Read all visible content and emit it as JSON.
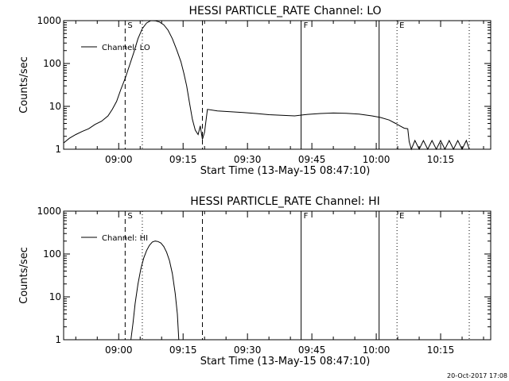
{
  "footer": {
    "timestamp": "20-Oct-2017 17:08"
  },
  "chart_data": [
    {
      "type": "line",
      "title": "HESSI PARTICLE_RATE Channel: LO",
      "xlabel": "Start Time (13-May-15 08:47:10)",
      "ylabel": "Counts/sec",
      "yscale": "log",
      "ylim": [
        1,
        1000
      ],
      "y_ticks": [
        1,
        10,
        100,
        1000
      ],
      "y_tick_labels": [
        "1",
        "10",
        "100",
        "1000"
      ],
      "x_time_range": [
        "08:47:10",
        "10:26:40"
      ],
      "x_ticks": [
        "09:00",
        "09:15",
        "09:30",
        "09:45",
        "10:00",
        "10:15"
      ],
      "legend": {
        "label": "Channel: LO",
        "position": "top-left"
      },
      "markers": [
        {
          "time": "09:01:30",
          "style": "dashed",
          "label": "S"
        },
        {
          "time": "09:05:30",
          "style": "dotted",
          "label": ""
        },
        {
          "time": "09:19:30",
          "style": "dashed",
          "label": ""
        },
        {
          "time": "09:42:30",
          "style": "solid",
          "label": "F"
        },
        {
          "time": "10:00:40",
          "style": "solid",
          "label": ""
        },
        {
          "time": "10:04:50",
          "style": "dotted",
          "label": "E"
        },
        {
          "time": "10:21:40",
          "style": "dotted",
          "label": ""
        }
      ],
      "series": [
        {
          "name": "Channel: LO",
          "points": [
            [
              "08:47:10",
              1.4
            ],
            [
              "08:48:30",
              1.8
            ],
            [
              "08:50:00",
              2.2
            ],
            [
              "08:51:30",
              2.6
            ],
            [
              "08:53:00",
              3.0
            ],
            [
              "08:54:30",
              3.8
            ],
            [
              "08:56:00",
              4.5
            ],
            [
              "08:57:30",
              6.0
            ],
            [
              "08:58:30",
              8.5
            ],
            [
              "08:59:30",
              13
            ],
            [
              "09:00:30",
              25
            ],
            [
              "09:01:30",
              45
            ],
            [
              "09:02:30",
              90
            ],
            [
              "09:03:30",
              180
            ],
            [
              "09:04:30",
              380
            ],
            [
              "09:05:30",
              650
            ],
            [
              "09:06:30",
              880
            ],
            [
              "09:07:30",
              1000
            ],
            [
              "09:08:30",
              990
            ],
            [
              "09:09:30",
              930
            ],
            [
              "09:10:30",
              800
            ],
            [
              "09:11:30",
              600
            ],
            [
              "09:12:30",
              380
            ],
            [
              "09:13:30",
              210
            ],
            [
              "09:14:30",
              110
            ],
            [
              "09:15:10",
              60
            ],
            [
              "09:15:50",
              30
            ],
            [
              "09:16:30",
              12
            ],
            [
              "09:17:10",
              5
            ],
            [
              "09:17:50",
              2.8
            ],
            [
              "09:18:30",
              2.2
            ],
            [
              "09:19:00",
              3.5
            ],
            [
              "09:19:30",
              1.7
            ],
            [
              "09:20:00",
              2.5
            ],
            [
              "09:20:40",
              8.5
            ],
            [
              "09:23:00",
              7.8
            ],
            [
              "09:26:00",
              7.5
            ],
            [
              "09:29:00",
              7.2
            ],
            [
              "09:32:00",
              6.8
            ],
            [
              "09:35:00",
              6.4
            ],
            [
              "09:38:00",
              6.2
            ],
            [
              "09:41:00",
              6.0
            ],
            [
              "09:44:00",
              6.5
            ],
            [
              "09:47:00",
              6.8
            ],
            [
              "09:50:00",
              7.0
            ],
            [
              "09:53:00",
              6.9
            ],
            [
              "09:56:00",
              6.6
            ],
            [
              "09:59:00",
              6.0
            ],
            [
              "10:01:00",
              5.5
            ],
            [
              "10:03:00",
              4.8
            ],
            [
              "10:04:30",
              4.0
            ],
            [
              "10:05:30",
              3.5
            ],
            [
              "10:06:30",
              3.1
            ],
            [
              "10:07:20",
              3.0
            ],
            [
              "10:07:40",
              1.5
            ],
            [
              "10:08:10",
              1.0
            ],
            [
              "10:09:00",
              1.6
            ],
            [
              "10:10:00",
              1.0
            ],
            [
              "10:11:00",
              1.6
            ],
            [
              "10:12:00",
              1.0
            ],
            [
              "10:13:00",
              1.6
            ],
            [
              "10:14:00",
              1.0
            ],
            [
              "10:15:00",
              1.6
            ],
            [
              "10:16:00",
              1.0
            ],
            [
              "10:17:00",
              1.6
            ],
            [
              "10:18:00",
              1.0
            ],
            [
              "10:19:00",
              1.6
            ],
            [
              "10:20:00",
              1.0
            ],
            [
              "10:21:00",
              1.6
            ],
            [
              "10:21:40",
              1.0
            ]
          ]
        }
      ]
    },
    {
      "type": "line",
      "title": "HESSI PARTICLE_RATE Channel: HI",
      "xlabel": "Start Time (13-May-15 08:47:10)",
      "ylabel": "Counts/sec",
      "yscale": "log",
      "ylim": [
        1,
        1000
      ],
      "y_ticks": [
        1,
        10,
        100,
        1000
      ],
      "y_tick_labels": [
        "1",
        "10",
        "100",
        "1000"
      ],
      "x_time_range": [
        "08:47:10",
        "10:26:40"
      ],
      "x_ticks": [
        "09:00",
        "09:15",
        "09:30",
        "09:45",
        "10:00",
        "10:15"
      ],
      "legend": {
        "label": "Channel: HI",
        "position": "top-left"
      },
      "markers": [
        {
          "time": "09:01:30",
          "style": "dashed",
          "label": "S"
        },
        {
          "time": "09:05:30",
          "style": "dotted",
          "label": ""
        },
        {
          "time": "09:19:30",
          "style": "dashed",
          "label": ""
        },
        {
          "time": "09:42:30",
          "style": "solid",
          "label": "F"
        },
        {
          "time": "10:00:40",
          "style": "solid",
          "label": ""
        },
        {
          "time": "10:04:50",
          "style": "dotted",
          "label": "E"
        },
        {
          "time": "10:21:40",
          "style": "dotted",
          "label": ""
        }
      ],
      "series": [
        {
          "name": "Channel: HI",
          "points": [
            [
              "09:02:50",
              1.0
            ],
            [
              "09:03:20",
              2.5
            ],
            [
              "09:03:50",
              7
            ],
            [
              "09:04:30",
              20
            ],
            [
              "09:05:10",
              45
            ],
            [
              "09:05:50",
              80
            ],
            [
              "09:06:30",
              120
            ],
            [
              "09:07:10",
              160
            ],
            [
              "09:07:50",
              190
            ],
            [
              "09:08:30",
              200
            ],
            [
              "09:09:10",
              195
            ],
            [
              "09:09:50",
              180
            ],
            [
              "09:10:30",
              150
            ],
            [
              "09:11:10",
              110
            ],
            [
              "09:11:50",
              70
            ],
            [
              "09:12:30",
              35
            ],
            [
              "09:13:10",
              12
            ],
            [
              "09:13:40",
              4
            ],
            [
              "09:14:00",
              1.0
            ]
          ]
        }
      ]
    }
  ]
}
